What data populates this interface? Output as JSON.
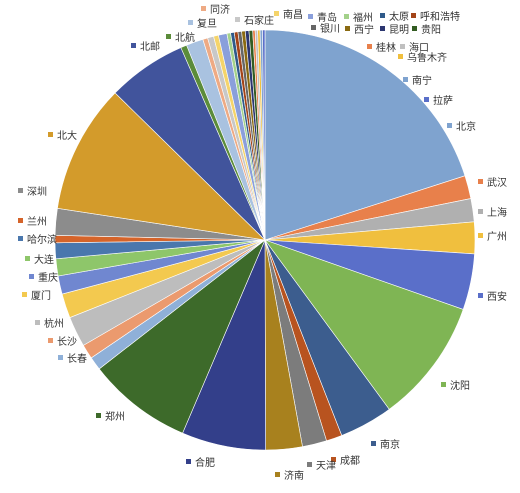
{
  "chart_data": {
    "type": "pie",
    "title": "",
    "legend_position": "labels-around",
    "slices": [
      {
        "label": "北京",
        "value": 21.4,
        "color": "#7fa3cf"
      },
      {
        "label": "武汉",
        "value": 1.9,
        "color": "#e8804b"
      },
      {
        "label": "上海",
        "value": 1.9,
        "color": "#b0b0b0"
      },
      {
        "label": "广州",
        "value": 2.6,
        "color": "#f0bf3e"
      },
      {
        "label": "西安",
        "value": 4.6,
        "color": "#5a6fc9"
      },
      {
        "label": "沈阳",
        "value": 10.2,
        "color": "#7fb554"
      },
      {
        "label": "南京",
        "value": 4.4,
        "color": "#3c5d8e"
      },
      {
        "label": "成都",
        "value": 1.3,
        "color": "#b8531f"
      },
      {
        "label": "天津",
        "value": 2.0,
        "color": "#7c7c7c"
      },
      {
        "label": "济南",
        "value": 3.0,
        "color": "#a8811e"
      },
      {
        "label": "合肥",
        "value": 6.9,
        "color": "#333f8a"
      },
      {
        "label": "郑州",
        "value": 8.6,
        "color": "#3d6a2a"
      },
      {
        "label": "长春",
        "value": 1.1,
        "color": "#8fb0d8"
      },
      {
        "label": "长沙",
        "value": 1.2,
        "color": "#eb9a6e"
      },
      {
        "label": "杭州",
        "value": 2.5,
        "color": "#bdbdbd"
      },
      {
        "label": "厦门",
        "value": 2.0,
        "color": "#f3c94f"
      },
      {
        "label": "重庆",
        "value": 1.5,
        "color": "#7087d0"
      },
      {
        "label": "大连",
        "value": 1.4,
        "color": "#8ec66a"
      },
      {
        "label": "哈尔滨",
        "value": 1.3,
        "color": "#4a77ad"
      },
      {
        "label": "兰州",
        "value": 0.6,
        "color": "#d5642a"
      },
      {
        "label": "深圳",
        "value": 2.2,
        "color": "#8c8c8c"
      },
      {
        "label": "北大",
        "value": 10.6,
        "color": "#d39b2b"
      },
      {
        "label": "北邮",
        "value": 6.5,
        "color": "#41549c"
      },
      {
        "label": "北航",
        "value": 0.5,
        "color": "#5b8c3a"
      },
      {
        "label": "复旦",
        "value": 1.4,
        "color": "#a9c2e0"
      },
      {
        "label": "同济",
        "value": 0.4,
        "color": "#eeaa84"
      },
      {
        "label": "石家庄",
        "value": 0.5,
        "color": "#c8c8c8"
      },
      {
        "label": "南昌",
        "value": 0.4,
        "color": "#f5d46a"
      },
      {
        "label": "青岛",
        "value": 0.7,
        "color": "#8a9fdb"
      },
      {
        "label": "福州",
        "value": 0.3,
        "color": "#a3d18a"
      },
      {
        "label": "太原",
        "value": 0.3,
        "color": "#2f5a8a"
      },
      {
        "label": "呼和浩特",
        "value": 0.3,
        "color": "#a34418"
      },
      {
        "label": "银川",
        "value": 0.3,
        "color": "#666666"
      },
      {
        "label": "西宁",
        "value": 0.3,
        "color": "#8a6a12"
      },
      {
        "label": "昆明",
        "value": 0.3,
        "color": "#2c3670"
      },
      {
        "label": "贵阳",
        "value": 0.3,
        "color": "#335c22"
      },
      {
        "label": "桂林",
        "value": 0.2,
        "color": "#e8804b"
      },
      {
        "label": "海口",
        "value": 0.2,
        "color": "#c0c0c0"
      },
      {
        "label": "乌鲁木齐",
        "value": 0.2,
        "color": "#f0bf3e"
      },
      {
        "label": "南宁",
        "value": 0.2,
        "color": "#7fa3cf"
      },
      {
        "label": "拉萨",
        "value": 0.2,
        "color": "#5a6fc9"
      }
    ]
  }
}
